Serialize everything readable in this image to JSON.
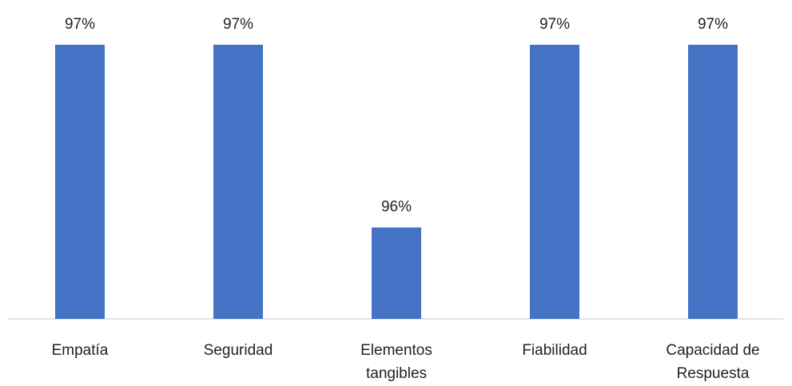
{
  "chart_data": {
    "type": "bar",
    "categories": [
      [
        "Empatía"
      ],
      [
        "Seguridad"
      ],
      [
        "Elementos",
        "tangibles"
      ],
      [
        "Fiabilidad"
      ],
      [
        "Capacidad de",
        "Respuesta"
      ]
    ],
    "values": [
      97,
      97,
      96,
      97,
      97
    ],
    "data_labels": [
      "97%",
      "97%",
      "96%",
      "97%",
      "97%"
    ],
    "title": "",
    "xlabel": "",
    "ylabel": "",
    "ylim": [
      95.5,
      97.15
    ],
    "grid": false,
    "legend": "none",
    "bar_color": "#4472C4",
    "axis_color": "#D9D9D9"
  }
}
